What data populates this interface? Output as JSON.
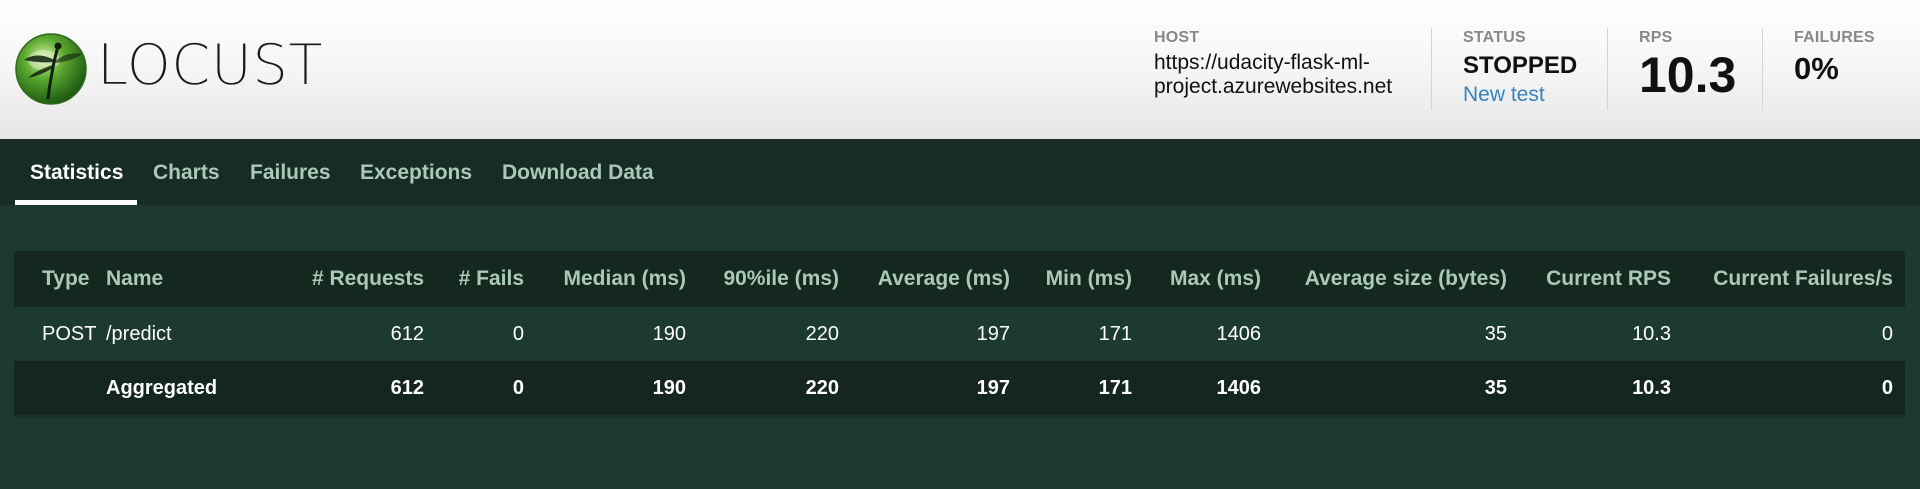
{
  "app": {
    "brand": "LOCUST"
  },
  "header": {
    "host_label": "HOST",
    "host_value": "https://udacity-flask-ml-project.azurewebsites.net",
    "status_label": "STATUS",
    "status_value": "STOPPED",
    "new_test_label": "New test",
    "rps_label": "RPS",
    "rps_value": "10.3",
    "failures_label": "FAILURES",
    "failures_value": "0%"
  },
  "tabs": [
    {
      "label": "Statistics",
      "active": true
    },
    {
      "label": "Charts"
    },
    {
      "label": "Failures"
    },
    {
      "label": "Exceptions"
    },
    {
      "label": "Download Data"
    }
  ],
  "stats_table": {
    "columns": [
      "Type",
      "Name",
      "# Requests",
      "# Fails",
      "Median (ms)",
      "90%ile (ms)",
      "Average (ms)",
      "Min (ms)",
      "Max (ms)",
      "Average size (bytes)",
      "Current RPS",
      "Current Failures/s"
    ],
    "rows": [
      [
        "POST",
        "/predict",
        "612",
        "0",
        "190",
        "220",
        "197",
        "171",
        "1406",
        "35",
        "10.3",
        "0"
      ]
    ],
    "aggregated": [
      "",
      "Aggregated",
      "612",
      "0",
      "190",
      "220",
      "197",
      "171",
      "1406",
      "35",
      "10.3",
      "0"
    ]
  },
  "colors": {
    "background": "#1e3a30",
    "tab_bar": "#162c24",
    "link": "#3683bf",
    "tab_text": "#a9c9b9"
  }
}
